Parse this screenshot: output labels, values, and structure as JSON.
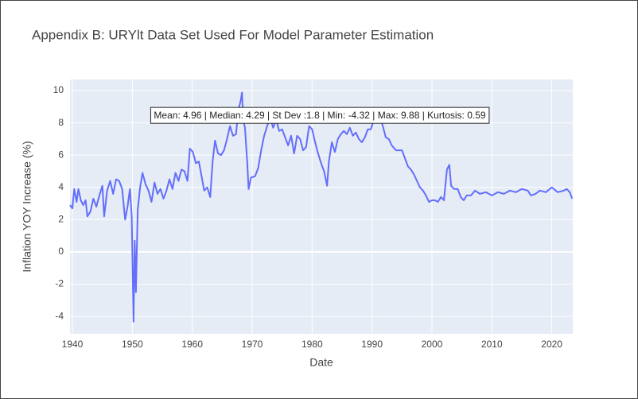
{
  "chart_data": {
    "type": "line",
    "title": "Appendix B: URYlt Data Set Used For Model Parameter Estimation",
    "x_label": "Date",
    "y_label": "Inflation YOY Increase (%)",
    "annotation": "Mean: 4.96 | Median: 4.29 | St Dev :1.8 | Min: -4.32 | Max: 9.88 | Kurtosis: 0.59",
    "color": "#636efa",
    "grid": true,
    "xlim": [
      1939.6,
      2023.5
    ],
    "ylim": [
      -5.08,
      10.69
    ],
    "xticks": [
      1940,
      1950,
      1960,
      1970,
      1980,
      1990,
      2000,
      2010,
      2020
    ],
    "yticks": [
      -4,
      -2,
      0,
      2,
      4,
      6,
      8,
      10
    ],
    "x": [
      1939.6,
      1940.0,
      1940.3,
      1940.7,
      1941.0,
      1941.4,
      1941.8,
      1942.2,
      1942.5,
      1943.0,
      1943.5,
      1944.0,
      1944.5,
      1945.0,
      1945.3,
      1945.8,
      1946.3,
      1946.8,
      1947.3,
      1947.8,
      1948.3,
      1948.8,
      1949.2,
      1949.6,
      1949.9,
      1950.2,
      1950.4,
      1950.6,
      1950.9,
      1951.3,
      1951.7,
      1952.2,
      1952.7,
      1953.2,
      1953.7,
      1954.2,
      1954.7,
      1955.2,
      1955.7,
      1956.2,
      1956.7,
      1957.2,
      1957.7,
      1958.2,
      1958.7,
      1959.2,
      1959.6,
      1960.1,
      1960.6,
      1961.1,
      1961.6,
      1962.0,
      1962.5,
      1963.0,
      1963.4,
      1963.8,
      1964.3,
      1964.8,
      1965.3,
      1965.8,
      1966.3,
      1966.8,
      1967.3,
      1967.7,
      1968.1,
      1968.3,
      1968.5,
      1968.8,
      1969.2,
      1969.4,
      1969.8,
      1970.5,
      1971.0,
      1971.5,
      1972.0,
      1972.5,
      1973.0,
      1973.5,
      1974.0,
      1974.5,
      1975.0,
      1975.5,
      1976.0,
      1976.5,
      1977.0,
      1977.5,
      1978.0,
      1978.5,
      1979.0,
      1979.5,
      1980.0,
      1980.5,
      1981.0,
      1981.5,
      1982.0,
      1982.5,
      1982.8,
      1983.3,
      1983.8,
      1984.3,
      1984.8,
      1985.3,
      1985.8,
      1986.3,
      1986.8,
      1987.3,
      1987.8,
      1988.3,
      1988.8,
      1989.3,
      1989.8,
      1990.3,
      1990.8,
      1991.3,
      1991.8,
      1992.3,
      1992.8,
      1993.3,
      1994.0,
      1995.0,
      1995.5,
      1996.0,
      1996.5,
      1997.0,
      1997.5,
      1998.0,
      1998.5,
      1999.0,
      1999.5,
      2000.0,
      2000.5,
      2001.0,
      2001.5,
      2002.0,
      2002.5,
      2002.9,
      2003.2,
      2003.7,
      2004.3,
      2004.8,
      2005.3,
      2005.8,
      2006.5,
      2007.2,
      2008.0,
      2009.0,
      2010.0,
      2011.0,
      2012.0,
      2013.0,
      2014.0,
      2015.0,
      2016.0,
      2016.5,
      2017.3,
      2018.0,
      2019.0,
      2020.0,
      2021.0,
      2022.0,
      2022.5,
      2023.0,
      2023.4
    ],
    "values": [
      2.9,
      2.7,
      3.9,
      3.1,
      3.9,
      3.2,
      2.9,
      3.2,
      2.2,
      2.5,
      3.3,
      2.8,
      3.5,
      4.1,
      2.2,
      3.8,
      4.4,
      3.6,
      4.5,
      4.4,
      3.9,
      2.0,
      2.8,
      3.9,
      2.2,
      -4.32,
      0.7,
      -2.5,
      2.6,
      4.0,
      4.9,
      4.2,
      3.8,
      3.1,
      4.3,
      3.6,
      3.9,
      3.3,
      3.8,
      4.5,
      3.9,
      4.9,
      4.4,
      5.1,
      5.0,
      4.4,
      6.4,
      6.2,
      5.5,
      5.6,
      4.6,
      3.8,
      4.0,
      3.4,
      5.6,
      6.9,
      6.1,
      6.0,
      6.3,
      7.0,
      7.8,
      7.2,
      7.3,
      8.8,
      9.4,
      9.88,
      8.2,
      7.7,
      5.4,
      3.9,
      4.6,
      4.7,
      5.2,
      6.3,
      7.2,
      7.8,
      8.3,
      7.7,
      8.2,
      7.5,
      7.6,
      7.1,
      6.6,
      7.2,
      6.1,
      7.2,
      7.0,
      6.3,
      6.5,
      7.8,
      7.6,
      6.8,
      6.1,
      5.5,
      5.0,
      4.1,
      5.6,
      6.8,
      6.2,
      7.0,
      7.3,
      7.5,
      7.3,
      7.7,
      7.2,
      7.4,
      7.0,
      6.8,
      7.1,
      7.6,
      7.6,
      8.2,
      8.0,
      8.4,
      7.8,
      7.1,
      7.0,
      6.6,
      6.3,
      6.3,
      5.8,
      5.3,
      5.1,
      4.8,
      4.4,
      4.0,
      3.8,
      3.5,
      3.1,
      3.2,
      3.2,
      3.1,
      3.4,
      3.2,
      5.1,
      5.4,
      4.1,
      3.9,
      3.9,
      3.4,
      3.2,
      3.5,
      3.5,
      3.8,
      3.6,
      3.7,
      3.5,
      3.7,
      3.6,
      3.8,
      3.7,
      3.9,
      3.8,
      3.5,
      3.6,
      3.8,
      3.7,
      4.0,
      3.7,
      3.8,
      3.9,
      3.7,
      3.3
    ]
  }
}
